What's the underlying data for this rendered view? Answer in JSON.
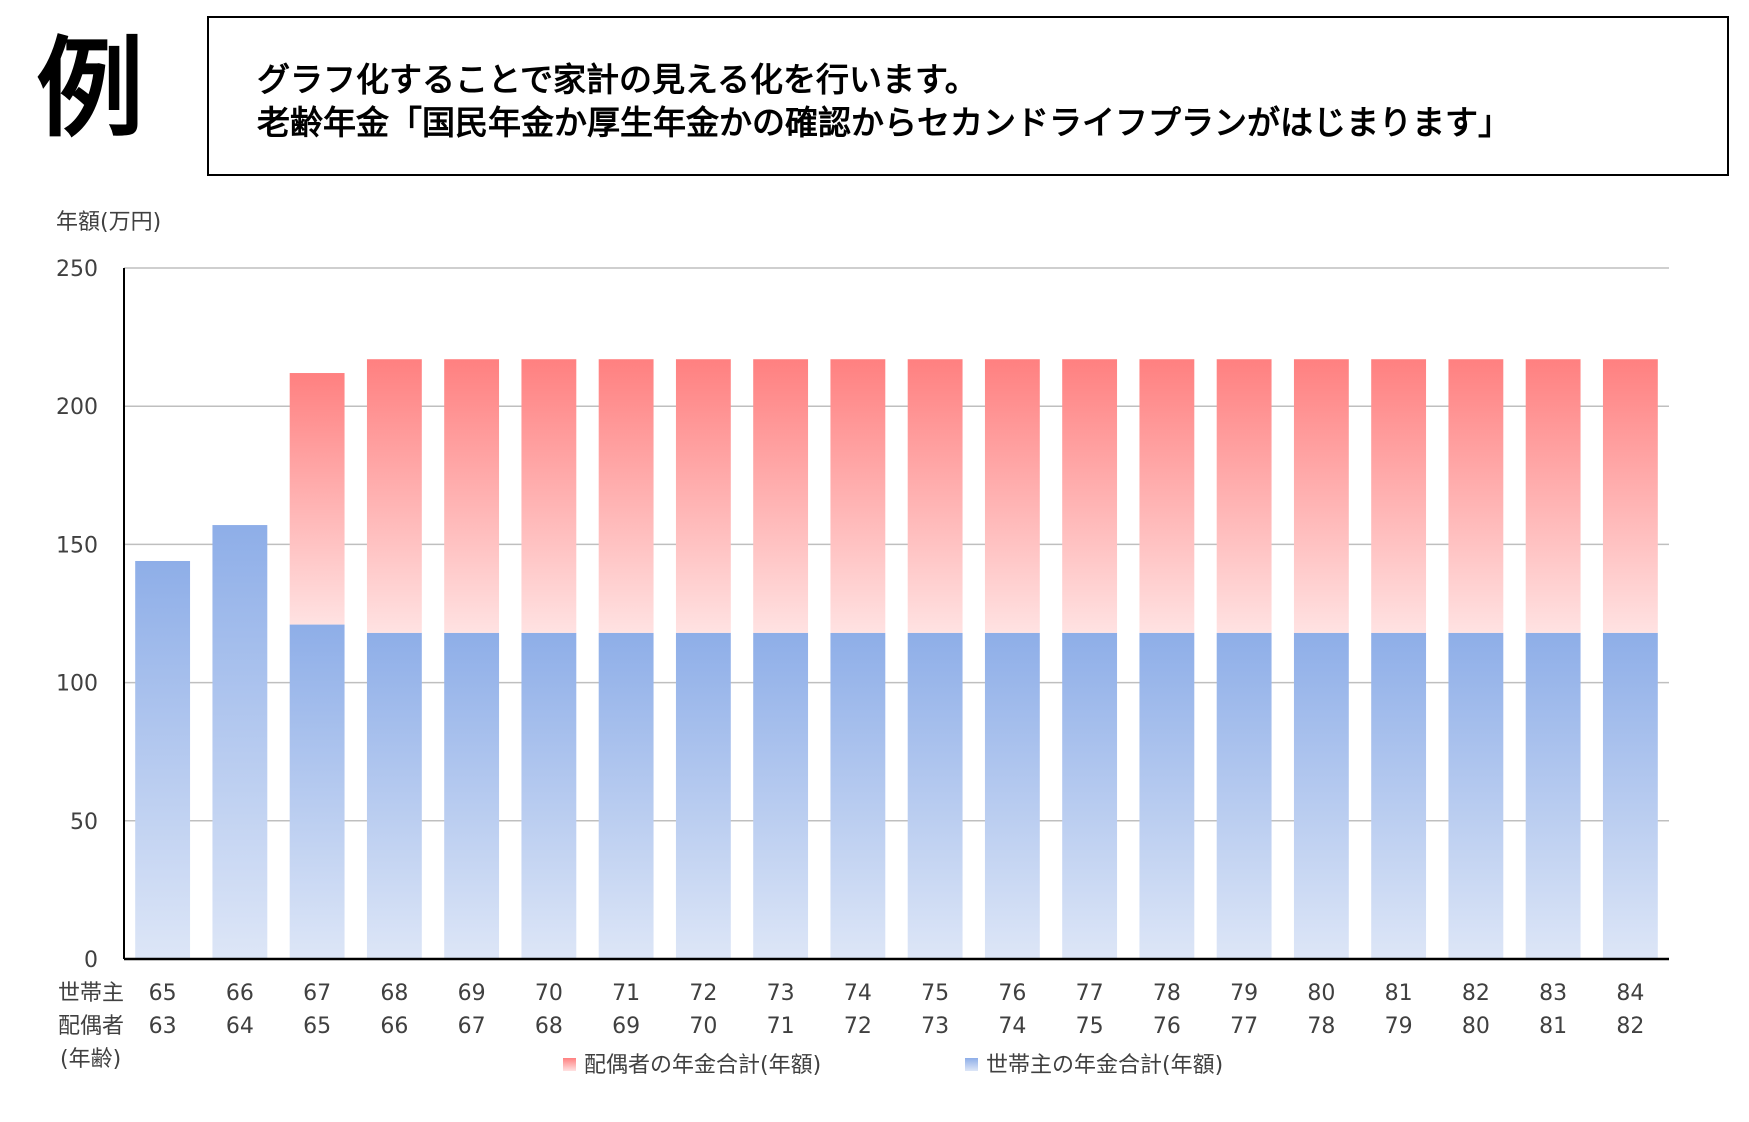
{
  "example_mark": "例",
  "heading": {
    "line1": "グラフ化することで家計の見える化を行います。",
    "line2": "老齢年金「国民年金か厚生年金かの確認からセカンドライフプランがはじまります」"
  },
  "colors": {
    "spouse_top": "#ff8080",
    "spouse_bottom": "#ffe2e2",
    "head_top": "#8eaee8",
    "head_bottom": "#dde6f7",
    "gridline": "#bfbfbf",
    "axis": "#000000",
    "text": "#404040"
  },
  "chart_data": {
    "type": "bar",
    "stacked": true,
    "title": "",
    "ylabel": "年額(万円)",
    "ylim": [
      0,
      250
    ],
    "yticks": [
      0,
      50,
      100,
      150,
      200,
      250
    ],
    "grid": true,
    "legend_position": "bottom",
    "row_labels": [
      "世帯主",
      "配偶者",
      "(年齢)"
    ],
    "categories_head": [
      "65",
      "66",
      "67",
      "68",
      "69",
      "70",
      "71",
      "72",
      "73",
      "74",
      "75",
      "76",
      "77",
      "78",
      "79",
      "80",
      "81",
      "82",
      "83",
      "84"
    ],
    "categories_spouse": [
      "63",
      "64",
      "65",
      "66",
      "67",
      "68",
      "69",
      "70",
      "71",
      "72",
      "73",
      "74",
      "75",
      "76",
      "77",
      "78",
      "79",
      "80",
      "81",
      "82"
    ],
    "series": [
      {
        "name": "世帯主の年金合計(年額)",
        "values": [
          144,
          157,
          121,
          118,
          118,
          118,
          118,
          118,
          118,
          118,
          118,
          118,
          118,
          118,
          118,
          118,
          118,
          118,
          118,
          118
        ]
      },
      {
        "name": "配偶者の年金合計(年額)",
        "values": [
          0,
          0,
          91,
          99,
          99,
          99,
          99,
          99,
          99,
          99,
          99,
          99,
          99,
          99,
          99,
          99,
          99,
          99,
          99,
          99
        ]
      }
    ],
    "legend_order": [
      "配偶者の年金合計(年額)",
      "世帯主の年金合計(年額)"
    ]
  }
}
